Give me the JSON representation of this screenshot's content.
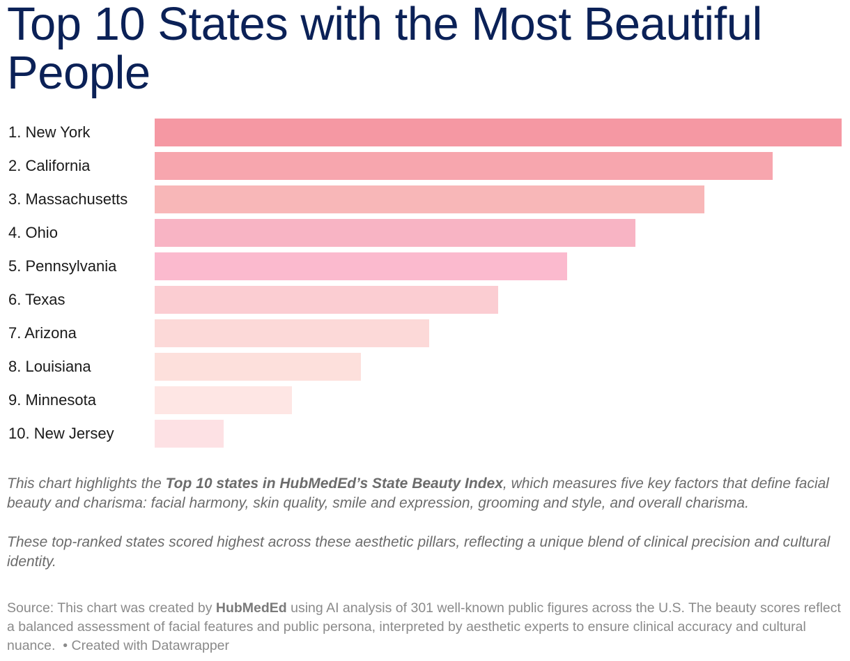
{
  "title": "Top 10 States with the Most Beautiful People",
  "chart_data": {
    "type": "bar",
    "orientation": "horizontal",
    "title": "Top 10 States with the Most Beautiful People",
    "categories": [
      "1. New York",
      "2. California",
      "3. Massachusetts",
      "4. Ohio",
      "5. Pennsylvania",
      "6. Texas",
      "7. Arizona",
      "8. Louisiana",
      "9. Minnesota",
      "10. New Jersey"
    ],
    "values": [
      10,
      9,
      8,
      7,
      6,
      5,
      4,
      3,
      2,
      1
    ],
    "colors": [
      "#f598a3",
      "#f7a6ae",
      "#f8b7b8",
      "#f8b4c4",
      "#fbbace",
      "#fbcdd2",
      "#fcd9d8",
      "#fde0dc",
      "#fee6e4",
      "#fde1e4"
    ],
    "xlim": [
      0,
      10
    ],
    "xlabel": "",
    "ylabel": ""
  },
  "notes": {
    "p1_before": "This chart highlights the ",
    "p1_bold": "Top 10 states in HubMedEd’s State Beauty Index",
    "p1_after": ", which measures five key factors that define facial beauty and charisma: facial harmony, skin quality, smile and expression, grooming and style, and overall charisma.",
    "p2": "These top-ranked states scored highest across these aesthetic pillars, reflecting a unique blend of clinical precision and cultural identity."
  },
  "source": {
    "prefix": "Source: This chart was created by ",
    "bold": "HubMedEd",
    "rest": " using AI analysis of 301 well-known public figures across the U.S. The beauty scores reflect a balanced assessment of facial features and public persona, interpreted by aesthetic experts to ensure clinical accuracy and cultural nuance.",
    "credit": "• Created with Datawrapper"
  }
}
